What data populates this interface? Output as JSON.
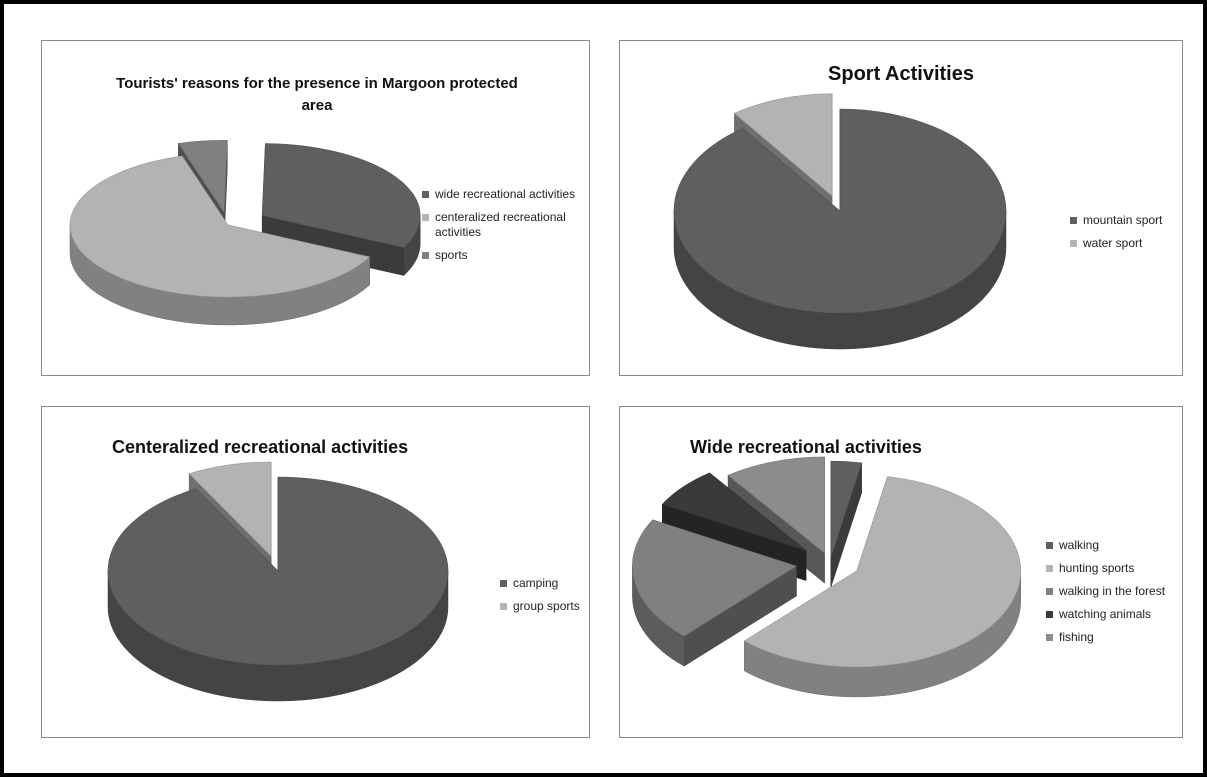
{
  "chart_data": [
    {
      "type": "pie",
      "title": "Tourists' reasons for the presence in Margoon protected area",
      "categories": [
        "wide recreational activities",
        "centeralized recreational activities",
        "sports"
      ],
      "values": [
        32,
        63,
        5
      ],
      "colors": [
        "#5f5f5f",
        "#b3b3b3",
        "#808080"
      ],
      "legend_position": "right",
      "style": "3D exploded"
    },
    {
      "type": "pie",
      "title": "Sport Activities",
      "categories": [
        "mountain sport",
        "water sport"
      ],
      "values": [
        90,
        10
      ],
      "colors": [
        "#5f5f5f",
        "#b3b3b3"
      ],
      "legend_position": "right",
      "style": "3D exploded"
    },
    {
      "type": "pie",
      "title": "Centeralized recreational activities",
      "categories": [
        "camping",
        "group sports"
      ],
      "values": [
        92,
        8
      ],
      "colors": [
        "#5f5f5f",
        "#b3b3b3"
      ],
      "legend_position": "right",
      "style": "3D exploded"
    },
    {
      "type": "pie",
      "title": "Wide recreational activities",
      "categories": [
        "walking",
        "hunting sports",
        "walking in the forest",
        "watching animals",
        "fishing"
      ],
      "values": [
        3,
        59,
        21,
        7,
        10
      ],
      "colors": [
        "#5f5f5f",
        "#b3b3b3",
        "#808080",
        "#3a3a3a",
        "#8c8c8c"
      ],
      "legend_position": "right",
      "style": "3D exploded"
    }
  ]
}
